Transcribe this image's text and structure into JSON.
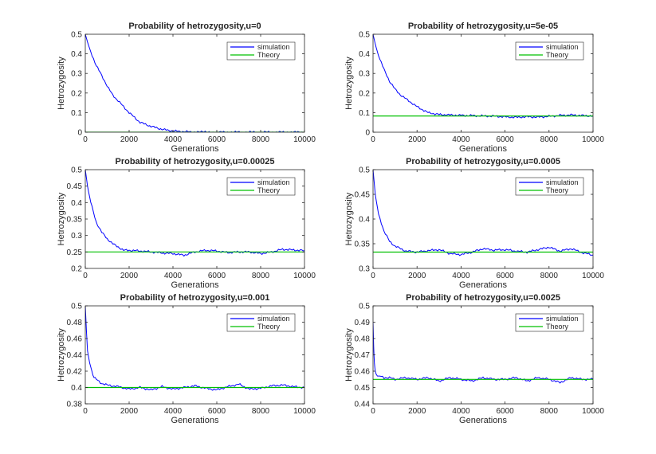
{
  "figure": {
    "background": "#ffffff"
  },
  "chart_data": [
    {
      "type": "line",
      "title": "Probability of hetrozygosity,u=0",
      "xlabel": "Generations",
      "ylabel": "Hetrozygosity",
      "xlim": [
        0,
        10000
      ],
      "ylim": [
        0,
        0.5
      ],
      "xticks": [
        0,
        2000,
        4000,
        6000,
        8000,
        10000
      ],
      "yticks": [
        0,
        0.1,
        0.2,
        0.3,
        0.4,
        0.5
      ],
      "ytick_labels": [
        "0",
        "0.1",
        "0.2",
        "0.3",
        "0.4",
        "0.5"
      ],
      "legend_position": "top-right",
      "series": [
        {
          "name": "simulation",
          "color": "#0000ff",
          "x": [
            0,
            100,
            250,
            500,
            750,
            1000,
            1250,
            1500,
            1750,
            2000,
            2250,
            2500,
            3000,
            3500,
            4000,
            4500,
            5000,
            6000,
            8000,
            10000
          ],
          "y": [
            0.5,
            0.46,
            0.41,
            0.34,
            0.29,
            0.235,
            0.19,
            0.16,
            0.13,
            0.1,
            0.075,
            0.05,
            0.03,
            0.015,
            0.006,
            0.003,
            0.001,
            0,
            0,
            0
          ]
        },
        {
          "name": "Theory",
          "color": "#00c000",
          "x": [
            0,
            10000
          ],
          "y": [
            0,
            0
          ]
        }
      ]
    },
    {
      "type": "line",
      "title": "Probability of hetrozygosity,u=5e-05",
      "xlabel": "Generations",
      "ylabel": "Hetrozygosity",
      "xlim": [
        0,
        10000
      ],
      "ylim": [
        0,
        0.5
      ],
      "xticks": [
        0,
        2000,
        4000,
        6000,
        8000,
        10000
      ],
      "yticks": [
        0,
        0.1,
        0.2,
        0.3,
        0.4,
        0.5
      ],
      "ytick_labels": [
        "0",
        "0.1",
        "0.2",
        "0.3",
        "0.4",
        "0.5"
      ],
      "legend_position": "top-right",
      "series": [
        {
          "name": "simulation",
          "color": "#0000ff",
          "x": [
            0,
            100,
            250,
            500,
            750,
            1000,
            1250,
            1500,
            1750,
            2000,
            2250,
            2500,
            2750,
            3000,
            3500,
            4000,
            4500,
            5000,
            5500,
            6000,
            6500,
            7000,
            7500,
            8000,
            8500,
            9000,
            9500,
            10000
          ],
          "y": [
            0.5,
            0.45,
            0.39,
            0.32,
            0.26,
            0.22,
            0.19,
            0.17,
            0.15,
            0.13,
            0.115,
            0.1,
            0.095,
            0.09,
            0.088,
            0.086,
            0.085,
            0.083,
            0.082,
            0.078,
            0.076,
            0.079,
            0.077,
            0.081,
            0.086,
            0.088,
            0.085,
            0.083
          ]
        },
        {
          "name": "Theory",
          "color": "#00c000",
          "x": [
            0,
            10000
          ],
          "y": [
            0.083,
            0.083
          ]
        }
      ]
    },
    {
      "type": "line",
      "title": "Probability of hetrozygosity,u=0.00025",
      "xlabel": "Generations",
      "ylabel": "Hetrozygosity",
      "xlim": [
        0,
        10000
      ],
      "ylim": [
        0.2,
        0.5
      ],
      "xticks": [
        0,
        2000,
        4000,
        6000,
        8000,
        10000
      ],
      "yticks": [
        0.2,
        0.25,
        0.3,
        0.35,
        0.4,
        0.45,
        0.5
      ],
      "ytick_labels": [
        "0.2",
        "0.25",
        "0.3",
        "0.35",
        "0.4",
        "0.45",
        "0.5"
      ],
      "legend_position": "top-right",
      "series": [
        {
          "name": "simulation",
          "color": "#0000ff",
          "x": [
            0,
            100,
            250,
            500,
            750,
            1000,
            1250,
            1500,
            1750,
            2000,
            2500,
            3000,
            3500,
            4000,
            4500,
            5000,
            5500,
            6000,
            6500,
            7000,
            7500,
            8000,
            8500,
            9000,
            9500,
            10000
          ],
          "y": [
            0.5,
            0.45,
            0.4,
            0.34,
            0.31,
            0.29,
            0.275,
            0.265,
            0.255,
            0.255,
            0.253,
            0.25,
            0.247,
            0.245,
            0.24,
            0.25,
            0.255,
            0.253,
            0.248,
            0.25,
            0.25,
            0.245,
            0.25,
            0.258,
            0.256,
            0.254
          ]
        },
        {
          "name": "Theory",
          "color": "#00c000",
          "x": [
            0,
            10000
          ],
          "y": [
            0.25,
            0.25
          ]
        }
      ]
    },
    {
      "type": "line",
      "title": "Probability of hetrozygosity,u=0.0005",
      "xlabel": "Generations",
      "ylabel": "Hetrozygosity",
      "xlim": [
        0,
        10000
      ],
      "ylim": [
        0.3,
        0.5
      ],
      "xticks": [
        0,
        2000,
        4000,
        6000,
        8000,
        10000
      ],
      "yticks": [
        0.3,
        0.35,
        0.4,
        0.45,
        0.5
      ],
      "ytick_labels": [
        "0.3",
        "0.35",
        "0.4",
        "0.45",
        "0.5"
      ],
      "legend_position": "top-right",
      "series": [
        {
          "name": "simulation",
          "color": "#0000ff",
          "x": [
            0,
            100,
            250,
            500,
            750,
            1000,
            1250,
            1500,
            2000,
            2500,
            3000,
            3500,
            4000,
            4500,
            5000,
            5500,
            6000,
            6500,
            7000,
            7500,
            8000,
            8500,
            9000,
            9500,
            10000
          ],
          "y": [
            0.5,
            0.45,
            0.41,
            0.375,
            0.355,
            0.345,
            0.34,
            0.335,
            0.333,
            0.336,
            0.338,
            0.33,
            0.328,
            0.333,
            0.34,
            0.337,
            0.338,
            0.335,
            0.333,
            0.338,
            0.343,
            0.335,
            0.34,
            0.332,
            0.327
          ]
        },
        {
          "name": "Theory",
          "color": "#00c000",
          "x": [
            0,
            10000
          ],
          "y": [
            0.333,
            0.333
          ]
        }
      ]
    },
    {
      "type": "line",
      "title": "Probability of hetrozygosity,u=0.001",
      "xlabel": "Generations",
      "ylabel": "Hetrozygosity",
      "xlim": [
        0,
        10000
      ],
      "ylim": [
        0.38,
        0.5
      ],
      "xticks": [
        0,
        2000,
        4000,
        6000,
        8000,
        10000
      ],
      "yticks": [
        0.38,
        0.4,
        0.42,
        0.44,
        0.46,
        0.48,
        0.5
      ],
      "ytick_labels": [
        "0.38",
        "0.4",
        "0.42",
        "0.44",
        "0.46",
        "0.48",
        "0.5"
      ],
      "legend_position": "top-right",
      "series": [
        {
          "name": "simulation",
          "color": "#0000ff",
          "x": [
            0,
            50,
            100,
            200,
            300,
            400,
            500,
            750,
            1000,
            1500,
            2000,
            2500,
            3000,
            3500,
            4000,
            4500,
            5000,
            5500,
            6000,
            6500,
            7000,
            7500,
            8000,
            8500,
            9000,
            9500,
            10000
          ],
          "y": [
            0.5,
            0.47,
            0.445,
            0.43,
            0.42,
            0.412,
            0.41,
            0.405,
            0.403,
            0.401,
            0.398,
            0.4,
            0.397,
            0.401,
            0.398,
            0.4,
            0.402,
            0.399,
            0.397,
            0.401,
            0.404,
            0.398,
            0.399,
            0.402,
            0.403,
            0.401,
            0.4
          ]
        },
        {
          "name": "Theory",
          "color": "#00c000",
          "x": [
            0,
            10000
          ],
          "y": [
            0.4,
            0.4
          ]
        }
      ]
    },
    {
      "type": "line",
      "title": "Probability of hetrozygosity,u=0.0025",
      "xlabel": "Generations",
      "ylabel": "Hetrozygosity",
      "xlim": [
        0,
        10000
      ],
      "ylim": [
        0.44,
        0.5
      ],
      "xticks": [
        0,
        2000,
        4000,
        6000,
        8000,
        10000
      ],
      "yticks": [
        0.44,
        0.45,
        0.46,
        0.47,
        0.48,
        0.49,
        0.5
      ],
      "ytick_labels": [
        "0.44",
        "0.45",
        "0.46",
        "0.47",
        "0.48",
        "0.49",
        "0.5"
      ],
      "legend_position": "top-right",
      "series": [
        {
          "name": "simulation",
          "color": "#0000ff",
          "x": [
            0,
            30,
            60,
            100,
            150,
            200,
            300,
            500,
            750,
            1000,
            1500,
            2000,
            2500,
            3000,
            3500,
            4000,
            4500,
            5000,
            5500,
            6000,
            6500,
            7000,
            7500,
            8000,
            8500,
            9000,
            9500,
            10000
          ],
          "y": [
            0.49,
            0.475,
            0.465,
            0.46,
            0.458,
            0.457,
            0.457,
            0.456,
            0.456,
            0.455,
            0.456,
            0.455,
            0.456,
            0.454,
            0.456,
            0.455,
            0.454,
            0.456,
            0.455,
            0.455,
            0.456,
            0.454,
            0.456,
            0.455,
            0.453,
            0.456,
            0.455,
            0.455
          ]
        },
        {
          "name": "Theory",
          "color": "#00c000",
          "x": [
            0,
            10000
          ],
          "y": [
            0.455,
            0.455
          ]
        }
      ]
    }
  ]
}
